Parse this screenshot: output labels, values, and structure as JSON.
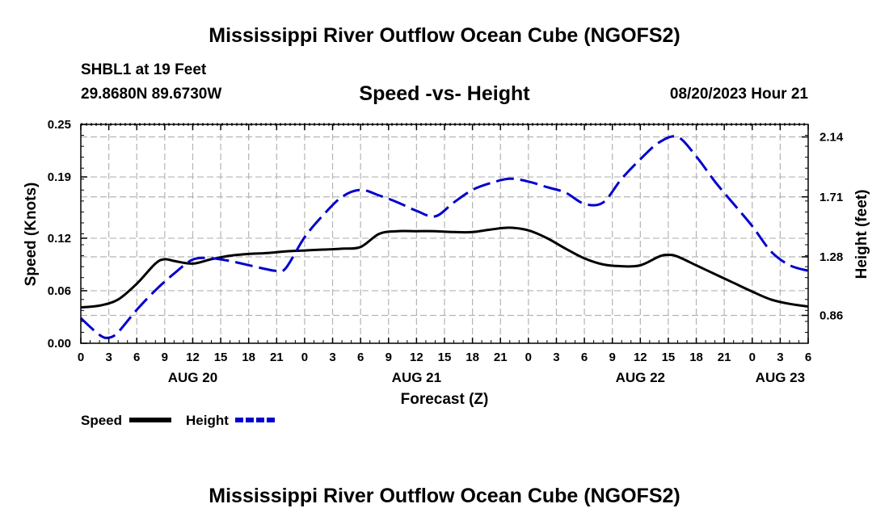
{
  "page": {
    "title_top": "Mississippi River Outflow Ocean Cube (NGOFS2)",
    "title_bottom": "Mississippi River Outflow Ocean Cube (NGOFS2)",
    "station": "SHBL1 at 19 Feet",
    "location": "29.8680N  89.6730W",
    "datetime": "08/20/2023 Hour 21"
  },
  "colors": {
    "speed": "#000000",
    "height": "#0000cc",
    "grid": "#b4b4b4"
  },
  "chart_data": {
    "type": "line",
    "title": "Speed -vs- Height",
    "xlabel": "Forecast (Z)",
    "ylabel": "Speed (Knots)",
    "y2label": "Height (feet)",
    "x_range": [
      0,
      78
    ],
    "ylim": [
      0,
      0.25
    ],
    "y2lim": [
      0.66,
      2.23
    ],
    "x_ticks": [
      0,
      3,
      6,
      9,
      12,
      15,
      18,
      21,
      24,
      27,
      30,
      33,
      36,
      39,
      42,
      45,
      48,
      51,
      54,
      57,
      60,
      63,
      66,
      69,
      72,
      75,
      78
    ],
    "x_tick_labels": [
      "0",
      "3",
      "6",
      "9",
      "12",
      "15",
      "18",
      "21",
      "0",
      "3",
      "6",
      "9",
      "12",
      "15",
      "18",
      "21",
      "0",
      "3",
      "6",
      "9",
      "12",
      "15",
      "18",
      "21",
      "0",
      "3",
      "6"
    ],
    "date_labels": [
      {
        "x": 12,
        "text": "AUG 20"
      },
      {
        "x": 36,
        "text": "AUG 21"
      },
      {
        "x": 60,
        "text": "AUG 22"
      },
      {
        "x": 75,
        "text": "AUG 23"
      }
    ],
    "y_ticks": [
      0.0,
      0.06,
      0.12,
      0.19,
      0.25
    ],
    "y_tick_labels": [
      "0.00",
      "0.06",
      "0.12",
      "0.19",
      "0.25"
    ],
    "y2_ticks": [
      0.86,
      1.28,
      1.71,
      2.14
    ],
    "y2_tick_labels": [
      "0.86",
      "1.28",
      "1.71",
      "2.14"
    ],
    "series": [
      {
        "name": "Speed",
        "axis": "left",
        "style": "solid",
        "x": [
          0,
          2,
          4,
          6,
          8,
          9,
          10,
          12,
          14,
          16,
          18,
          20,
          22,
          24,
          26,
          28,
          30,
          32,
          34,
          36,
          38,
          40,
          42,
          44,
          46,
          48,
          50,
          52,
          54,
          56,
          58,
          60,
          62,
          63,
          64,
          66,
          68,
          70,
          72,
          74,
          76,
          78
        ],
        "y": [
          0.041,
          0.043,
          0.05,
          0.068,
          0.091,
          0.096,
          0.094,
          0.091,
          0.096,
          0.1,
          0.102,
          0.103,
          0.105,
          0.106,
          0.107,
          0.108,
          0.11,
          0.125,
          0.128,
          0.128,
          0.128,
          0.127,
          0.127,
          0.13,
          0.132,
          0.129,
          0.12,
          0.108,
          0.097,
          0.09,
          0.088,
          0.089,
          0.099,
          0.101,
          0.099,
          0.089,
          0.079,
          0.069,
          0.059,
          0.05,
          0.045,
          0.042
        ]
      },
      {
        "name": "Height",
        "axis": "right",
        "style": "dashed",
        "x": [
          0,
          2,
          3,
          4,
          6,
          8,
          10,
          12,
          14,
          16,
          18,
          20,
          21,
          22,
          24,
          26,
          28,
          30,
          32,
          34,
          36,
          38,
          40,
          42,
          44,
          46,
          48,
          50,
          52,
          54,
          56,
          58,
          60,
          62,
          64,
          66,
          68,
          70,
          72,
          74,
          76,
          78
        ],
        "y": [
          0.84,
          0.72,
          0.7,
          0.74,
          0.9,
          1.04,
          1.16,
          1.26,
          1.27,
          1.25,
          1.22,
          1.19,
          1.18,
          1.2,
          1.42,
          1.58,
          1.71,
          1.76,
          1.72,
          1.67,
          1.61,
          1.57,
          1.67,
          1.76,
          1.81,
          1.84,
          1.82,
          1.78,
          1.74,
          1.66,
          1.67,
          1.84,
          1.98,
          2.1,
          2.14,
          2.0,
          1.82,
          1.66,
          1.5,
          1.32,
          1.22,
          1.18
        ]
      }
    ],
    "legend": [
      {
        "label": "Speed",
        "style": "solid"
      },
      {
        "label": "Height",
        "style": "dashed"
      }
    ]
  }
}
